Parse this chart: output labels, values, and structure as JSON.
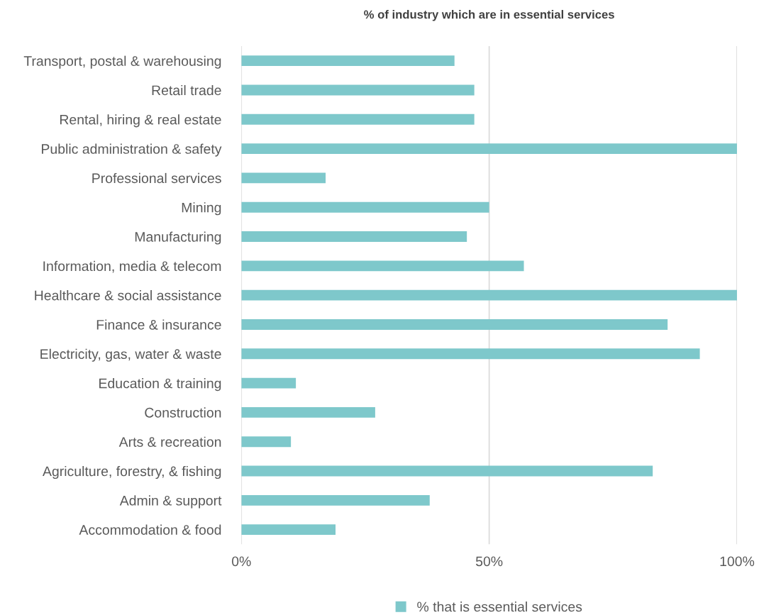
{
  "chart_data": {
    "type": "bar",
    "orientation": "horizontal",
    "title": "% of industry which are in essential services",
    "categories": [
      "Transport, postal & warehousing",
      "Retail trade",
      "Rental, hiring & real estate",
      "Public administration & safety",
      "Professional services",
      "Mining",
      "Manufacturing",
      "Information, media & telecom",
      "Healthcare & social assistance",
      "Finance & insurance",
      "Electricity, gas, water & waste",
      "Education & training",
      "Construction",
      "Arts & recreation",
      "Agriculture, forestry, & fishing",
      "Admin & support",
      "Accommodation & food"
    ],
    "series": [
      {
        "name": "% that is essential services",
        "color": "#7ec8cb",
        "values": [
          43,
          47,
          47,
          100,
          17,
          50,
          45.5,
          57,
          100,
          86,
          92.5,
          11,
          27,
          10,
          83,
          38,
          19
        ]
      }
    ],
    "xlim": [
      0,
      100
    ],
    "xticks": [
      {
        "value": 0,
        "label": "0%"
      },
      {
        "value": 50,
        "label": "50%"
      },
      {
        "value": 100,
        "label": "100%"
      }
    ],
    "grid": "x",
    "legend": "bottom"
  }
}
